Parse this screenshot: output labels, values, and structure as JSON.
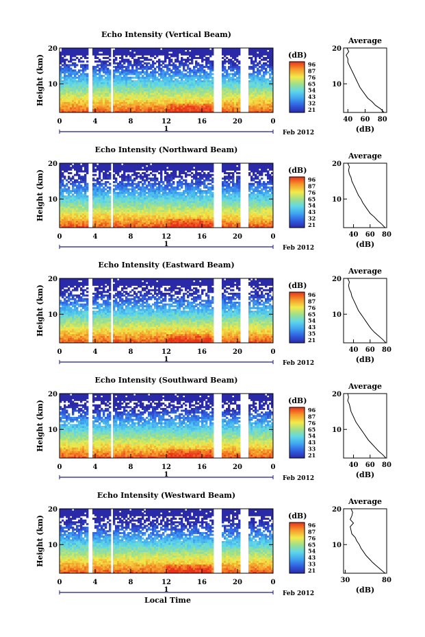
{
  "figure": {
    "y_axis_label": "Height (km)",
    "x_axis_label": "Local Time",
    "day_label": "1",
    "month_label": "Feb 2012",
    "unit_label": "(dB)",
    "profile_title": "Average",
    "profile_xlabel": "(dB)"
  },
  "chart_data": [
    {
      "type": "heatmap",
      "title": "Echo Intensity (Vertical Beam)",
      "xlabel": "Local Time",
      "ylabel": "Height (km)",
      "xlim": [
        0,
        24
      ],
      "ylim": [
        2,
        20
      ],
      "x_ticks": [
        "0",
        "4",
        "8",
        "12",
        "16",
        "20",
        "0"
      ],
      "y_ticks": [
        "20",
        "10"
      ],
      "colorbar_ticks": [
        "96",
        "87",
        "76",
        "65",
        "54",
        "43",
        "32",
        "21"
      ],
      "data_gaps_hours": [
        [
          3.3,
          3.6
        ],
        [
          5.8,
          6.1
        ],
        [
          17.2,
          18.2
        ],
        [
          20.3,
          21.2
        ]
      ],
      "profile": {
        "title": "Average",
        "xlabel": "(dB)",
        "x_ticks": [
          "40",
          "60",
          "80"
        ],
        "xlim": [
          35,
          85
        ],
        "heights": [
          2,
          3,
          4,
          5,
          6,
          7,
          8,
          9,
          10,
          11,
          12,
          13,
          14,
          15,
          16,
          17,
          18,
          19,
          20
        ],
        "values": [
          82,
          78,
          72,
          68,
          63,
          60,
          57,
          54,
          52,
          50,
          48,
          46,
          44,
          42,
          40,
          40,
          38,
          41,
          39
        ]
      }
    },
    {
      "type": "heatmap",
      "title": "Echo Intensity (Northward Beam)",
      "xlabel": "Local Time",
      "ylabel": "Height (km)",
      "xlim": [
        0,
        24
      ],
      "ylim": [
        2,
        20
      ],
      "x_ticks": [
        "0",
        "4",
        "8",
        "12",
        "16",
        "20",
        "0"
      ],
      "y_ticks": [
        "20",
        "10"
      ],
      "colorbar_ticks": [
        "96",
        "87",
        "76",
        "65",
        "54",
        "43",
        "32",
        "21"
      ],
      "data_gaps_hours": [
        [
          3.3,
          3.6
        ],
        [
          5.8,
          6.1
        ],
        [
          17.2,
          18.2
        ],
        [
          20.3,
          21.2
        ]
      ],
      "profile": {
        "title": "Average",
        "xlabel": "(dB)",
        "x_ticks": [
          "40",
          "60",
          "80"
        ],
        "xlim": [
          28,
          80
        ],
        "heights": [
          2,
          3,
          4,
          5,
          6,
          7,
          8,
          9,
          10,
          11,
          12,
          13,
          14,
          15,
          16,
          17,
          18,
          19,
          20
        ],
        "values": [
          78,
          74,
          69,
          65,
          60,
          57,
          54,
          51,
          49,
          46,
          44,
          42,
          40,
          38,
          37,
          35,
          34,
          35,
          33
        ]
      }
    },
    {
      "type": "heatmap",
      "title": "Echo Intensity (Eastward Beam)",
      "xlabel": "Local Time",
      "ylabel": "Height (km)",
      "xlim": [
        0,
        24
      ],
      "ylim": [
        2,
        20
      ],
      "x_ticks": [
        "0",
        "4",
        "8",
        "12",
        "16",
        "20",
        "0"
      ],
      "y_ticks": [
        "20",
        "10"
      ],
      "colorbar_ticks": [
        "96",
        "87",
        "76",
        "65",
        "54",
        "43",
        "35",
        "21"
      ],
      "data_gaps_hours": [
        [
          3.3,
          3.6
        ],
        [
          5.8,
          6.1
        ],
        [
          17.2,
          18.2
        ],
        [
          20.3,
          21.2
        ]
      ],
      "profile": {
        "title": "Average",
        "xlabel": "(dB)",
        "x_ticks": [
          "40",
          "60",
          "80"
        ],
        "xlim": [
          28,
          80
        ],
        "heights": [
          2,
          3,
          4,
          5,
          6,
          7,
          8,
          9,
          10,
          11,
          12,
          13,
          14,
          15,
          16,
          17,
          18,
          19,
          20
        ],
        "values": [
          79,
          75,
          70,
          65,
          61,
          58,
          55,
          52,
          49,
          46,
          44,
          42,
          40,
          38,
          37,
          35,
          34,
          35,
          33
        ]
      }
    },
    {
      "type": "heatmap",
      "title": "Echo Intensity (Southward Beam)",
      "xlabel": "Local Time",
      "ylabel": "Height (km)",
      "xlim": [
        0,
        24
      ],
      "ylim": [
        2,
        20
      ],
      "x_ticks": [
        "0",
        "4",
        "8",
        "12",
        "16",
        "20",
        "0"
      ],
      "y_ticks": [
        "20",
        "10"
      ],
      "colorbar_ticks": [
        "96",
        "87",
        "76",
        "65",
        "54",
        "43",
        "33",
        "21"
      ],
      "data_gaps_hours": [
        [
          3.3,
          3.6
        ],
        [
          5.8,
          6.1
        ],
        [
          17.2,
          18.2
        ],
        [
          20.3,
          21.2
        ]
      ],
      "profile": {
        "title": "Average",
        "xlabel": "(dB)",
        "x_ticks": [
          "40",
          "60",
          "80"
        ],
        "xlim": [
          28,
          80
        ],
        "heights": [
          2,
          3,
          4,
          5,
          6,
          7,
          8,
          9,
          10,
          11,
          12,
          13,
          14,
          15,
          16,
          17,
          18,
          19,
          20
        ],
        "values": [
          79,
          75,
          70,
          66,
          62,
          58,
          55,
          52,
          49,
          46,
          43,
          41,
          39,
          37,
          36,
          35,
          33,
          34,
          33
        ]
      }
    },
    {
      "type": "heatmap",
      "title": "Echo Intensity (Westward Beam)",
      "xlabel": "Local Time",
      "ylabel": "Height (km)",
      "xlim": [
        0,
        24
      ],
      "ylim": [
        2,
        20
      ],
      "x_ticks": [
        "0",
        "4",
        "8",
        "12",
        "16",
        "20",
        "0"
      ],
      "y_ticks": [
        "20",
        "10"
      ],
      "colorbar_ticks": [
        "96",
        "87",
        "76",
        "65",
        "54",
        "43",
        "33",
        "21"
      ],
      "data_gaps_hours": [
        [
          3.3,
          3.6
        ],
        [
          5.8,
          6.1
        ],
        [
          17.2,
          18.2
        ],
        [
          20.3,
          21.2
        ]
      ],
      "profile": {
        "title": "Average",
        "xlabel": "(dB)",
        "x_ticks": [
          "30",
          "80"
        ],
        "xlim": [
          28,
          80
        ],
        "heights": [
          2,
          3,
          4,
          5,
          6,
          7,
          8,
          9,
          10,
          11,
          12,
          13,
          14,
          15,
          16,
          17,
          18,
          19,
          20
        ],
        "values": [
          78,
          73,
          68,
          63,
          59,
          55,
          52,
          49,
          47,
          44,
          42,
          38,
          37,
          36,
          40,
          36,
          38,
          39,
          37
        ]
      }
    }
  ]
}
